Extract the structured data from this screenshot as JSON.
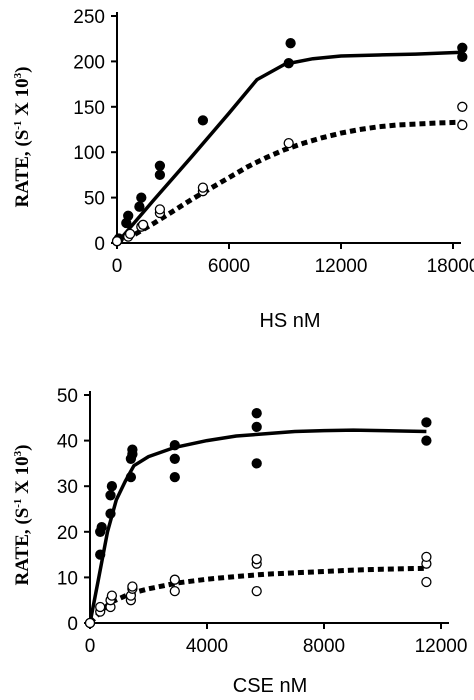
{
  "chart_data": [
    {
      "type": "scatter",
      "xlabel": "HS nM",
      "ylabel_prefix": "RATE, (S",
      "ylabel_exp1": "-1",
      "ylabel_mid": " X 10",
      "ylabel_exp2": "3",
      "ylabel_suffix": ")",
      "xlim": [
        0,
        18000
      ],
      "ylim": [
        0,
        250
      ],
      "xticks": [
        0,
        6000,
        12000,
        18000
      ],
      "yticks": [
        0,
        50,
        100,
        150,
        200,
        250
      ],
      "series": [
        {
          "marker": "filled-circle",
          "points": [
            [
              0,
              2
            ],
            [
              100,
              5
            ],
            [
              500,
              22
            ],
            [
              600,
              30
            ],
            [
              1200,
              40
            ],
            [
              1300,
              50
            ],
            [
              2300,
              75
            ],
            [
              2300,
              85
            ],
            [
              4600,
              135
            ],
            [
              9200,
              198
            ],
            [
              9300,
              220
            ],
            [
              18500,
              205
            ],
            [
              18500,
              215
            ]
          ]
        },
        {
          "marker": "open-circle",
          "points": [
            [
              0,
              2
            ],
            [
              600,
              7
            ],
            [
              700,
              10
            ],
            [
              1300,
              18
            ],
            [
              1400,
              20
            ],
            [
              2300,
              33
            ],
            [
              2300,
              37
            ],
            [
              4600,
              57
            ],
            [
              4600,
              61
            ],
            [
              9200,
              110
            ],
            [
              18500,
              130
            ],
            [
              18500,
              150
            ]
          ]
        },
        {
          "line_style": "solid",
          "curve": [
            [
              0,
              0
            ],
            [
              2000,
              48
            ],
            [
              4000,
              95
            ],
            [
              6000,
              143
            ],
            [
              7500,
              180
            ],
            [
              9000,
              197
            ],
            [
              10500,
              203
            ],
            [
              12000,
              206
            ],
            [
              14000,
              207
            ],
            [
              16000,
              208
            ],
            [
              18500,
              210
            ]
          ]
        },
        {
          "line_style": "dotted",
          "curve": [
            [
              0,
              0
            ],
            [
              1000,
              10
            ],
            [
              2000,
              22
            ],
            [
              3000,
              35
            ],
            [
              4000,
              48
            ],
            [
              5000,
              60
            ],
            [
              6000,
              72
            ],
            [
              7000,
              84
            ],
            [
              8000,
              94
            ],
            [
              9000,
              103
            ],
            [
              10000,
              110
            ],
            [
              11000,
              116
            ],
            [
              12000,
              121
            ],
            [
              13000,
              125
            ],
            [
              14000,
              128
            ],
            [
              15000,
              130
            ],
            [
              16000,
              131
            ],
            [
              17000,
              132
            ],
            [
              18500,
              133
            ]
          ]
        }
      ]
    },
    {
      "type": "scatter",
      "xlabel": "CSE  nM",
      "ylabel_prefix": "RATE, (S",
      "ylabel_exp1": "-1",
      "ylabel_mid": " X 10",
      "ylabel_exp2": "3",
      "ylabel_suffix": ")",
      "xlim": [
        0,
        12000
      ],
      "ylim": [
        0,
        50
      ],
      "xticks": [
        0,
        4000,
        8000,
        12000
      ],
      "yticks": [
        0,
        10,
        20,
        30,
        40,
        50
      ],
      "series": [
        {
          "marker": "filled-circle",
          "points": [
            [
              0,
              0
            ],
            [
              350,
              15
            ],
            [
              350,
              20
            ],
            [
              400,
              21
            ],
            [
              700,
              24
            ],
            [
              700,
              28
            ],
            [
              750,
              30
            ],
            [
              1400,
              32
            ],
            [
              1400,
              36
            ],
            [
              1450,
              37
            ],
            [
              1450,
              38
            ],
            [
              2900,
              32
            ],
            [
              2900,
              36
            ],
            [
              2900,
              39
            ],
            [
              5700,
              35
            ],
            [
              5700,
              43
            ],
            [
              5700,
              46
            ],
            [
              11500,
              40
            ],
            [
              11500,
              44
            ]
          ]
        },
        {
          "marker": "open-circle",
          "points": [
            [
              0,
              0
            ],
            [
              350,
              2.5
            ],
            [
              350,
              3.5
            ],
            [
              700,
              3.5
            ],
            [
              700,
              5
            ],
            [
              750,
              6
            ],
            [
              1400,
              5
            ],
            [
              1400,
              6
            ],
            [
              1450,
              7.5
            ],
            [
              1450,
              8
            ],
            [
              2900,
              7
            ],
            [
              2900,
              9.5
            ],
            [
              5700,
              7
            ],
            [
              5700,
              13
            ],
            [
              5700,
              14
            ],
            [
              11500,
              9
            ],
            [
              11500,
              13
            ],
            [
              11500,
              14.5
            ]
          ]
        },
        {
          "line_style": "solid",
          "curve": [
            [
              0,
              0
            ],
            [
              300,
              10
            ],
            [
              600,
              20
            ],
            [
              900,
              27
            ],
            [
              1200,
              31
            ],
            [
              1500,
              34.5
            ],
            [
              2000,
              36.5
            ],
            [
              2900,
              38.5
            ],
            [
              4000,
              40
            ],
            [
              5000,
              41
            ],
            [
              6000,
              41.5
            ],
            [
              7000,
              42
            ],
            [
              8000,
              42.2
            ],
            [
              9000,
              42.3
            ],
            [
              10000,
              42.2
            ],
            [
              11500,
              42
            ]
          ]
        },
        {
          "line_style": "dotted",
          "curve": [
            [
              0,
              0
            ],
            [
              300,
              2
            ],
            [
              700,
              4.5
            ],
            [
              1400,
              6.5
            ],
            [
              2000,
              7.5
            ],
            [
              3000,
              8.8
            ],
            [
              4000,
              9.6
            ],
            [
              5000,
              10.2
            ],
            [
              6000,
              10.7
            ],
            [
              7000,
              11
            ],
            [
              8000,
              11.3
            ],
            [
              9000,
              11.6
            ],
            [
              10000,
              11.8
            ],
            [
              11500,
              12
            ]
          ]
        }
      ]
    }
  ]
}
